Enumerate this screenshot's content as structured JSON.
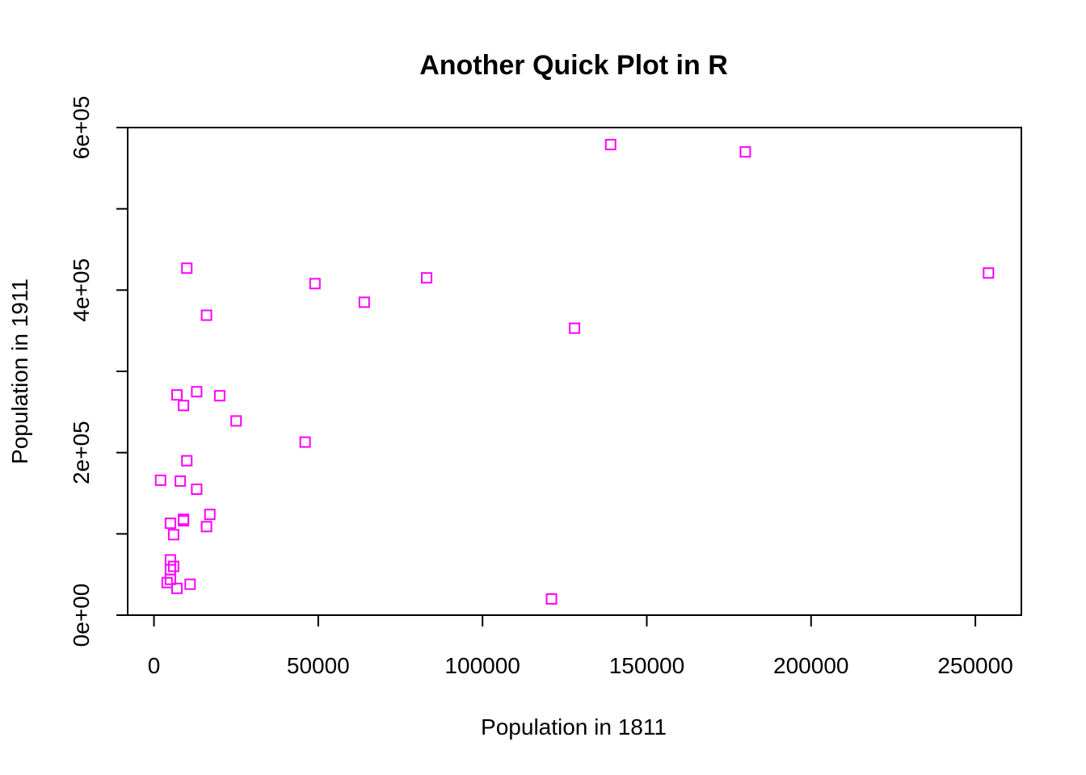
{
  "chart_data": {
    "type": "scatter",
    "title": "Another Quick Plot in R",
    "xlabel": "Population in 1811",
    "ylabel": "Population in 1911",
    "xlim": [
      -8000,
      264000
    ],
    "ylim": [
      0,
      600000
    ],
    "x_ticks": [
      0,
      50000,
      100000,
      150000,
      200000,
      250000
    ],
    "x_tick_labels": [
      "0",
      "50000",
      "100000",
      "150000",
      "200000",
      "250000"
    ],
    "y_ticks": [
      0,
      100000,
      200000,
      300000,
      400000,
      500000,
      600000
    ],
    "y_tick_labels": [
      "0e+00",
      "",
      "2e+05",
      "",
      "4e+05",
      "",
      "6e+05"
    ],
    "marker": "open-square",
    "point_color": "#ff00ff",
    "grid": false,
    "points": [
      {
        "x": 2000,
        "y": 166000
      },
      {
        "x": 4000,
        "y": 40000
      },
      {
        "x": 5000,
        "y": 44000
      },
      {
        "x": 5000,
        "y": 56000
      },
      {
        "x": 5000,
        "y": 68000
      },
      {
        "x": 5000,
        "y": 113000
      },
      {
        "x": 6000,
        "y": 60000
      },
      {
        "x": 6000,
        "y": 99000
      },
      {
        "x": 7000,
        "y": 33000
      },
      {
        "x": 7000,
        "y": 271000
      },
      {
        "x": 8000,
        "y": 165000
      },
      {
        "x": 9000,
        "y": 116000
      },
      {
        "x": 9000,
        "y": 118000
      },
      {
        "x": 9000,
        "y": 258000
      },
      {
        "x": 10000,
        "y": 190000
      },
      {
        "x": 10000,
        "y": 427000
      },
      {
        "x": 11000,
        "y": 38000
      },
      {
        "x": 13000,
        "y": 155000
      },
      {
        "x": 13000,
        "y": 275000
      },
      {
        "x": 16000,
        "y": 109000
      },
      {
        "x": 16000,
        "y": 369000
      },
      {
        "x": 17000,
        "y": 124000
      },
      {
        "x": 20000,
        "y": 270000
      },
      {
        "x": 25000,
        "y": 239000
      },
      {
        "x": 46000,
        "y": 213000
      },
      {
        "x": 49000,
        "y": 408000
      },
      {
        "x": 64000,
        "y": 385000
      },
      {
        "x": 83000,
        "y": 415000
      },
      {
        "x": 121000,
        "y": 20000
      },
      {
        "x": 128000,
        "y": 353000
      },
      {
        "x": 139000,
        "y": 579000
      },
      {
        "x": 180000,
        "y": 570000
      },
      {
        "x": 254000,
        "y": 421000
      }
    ]
  }
}
